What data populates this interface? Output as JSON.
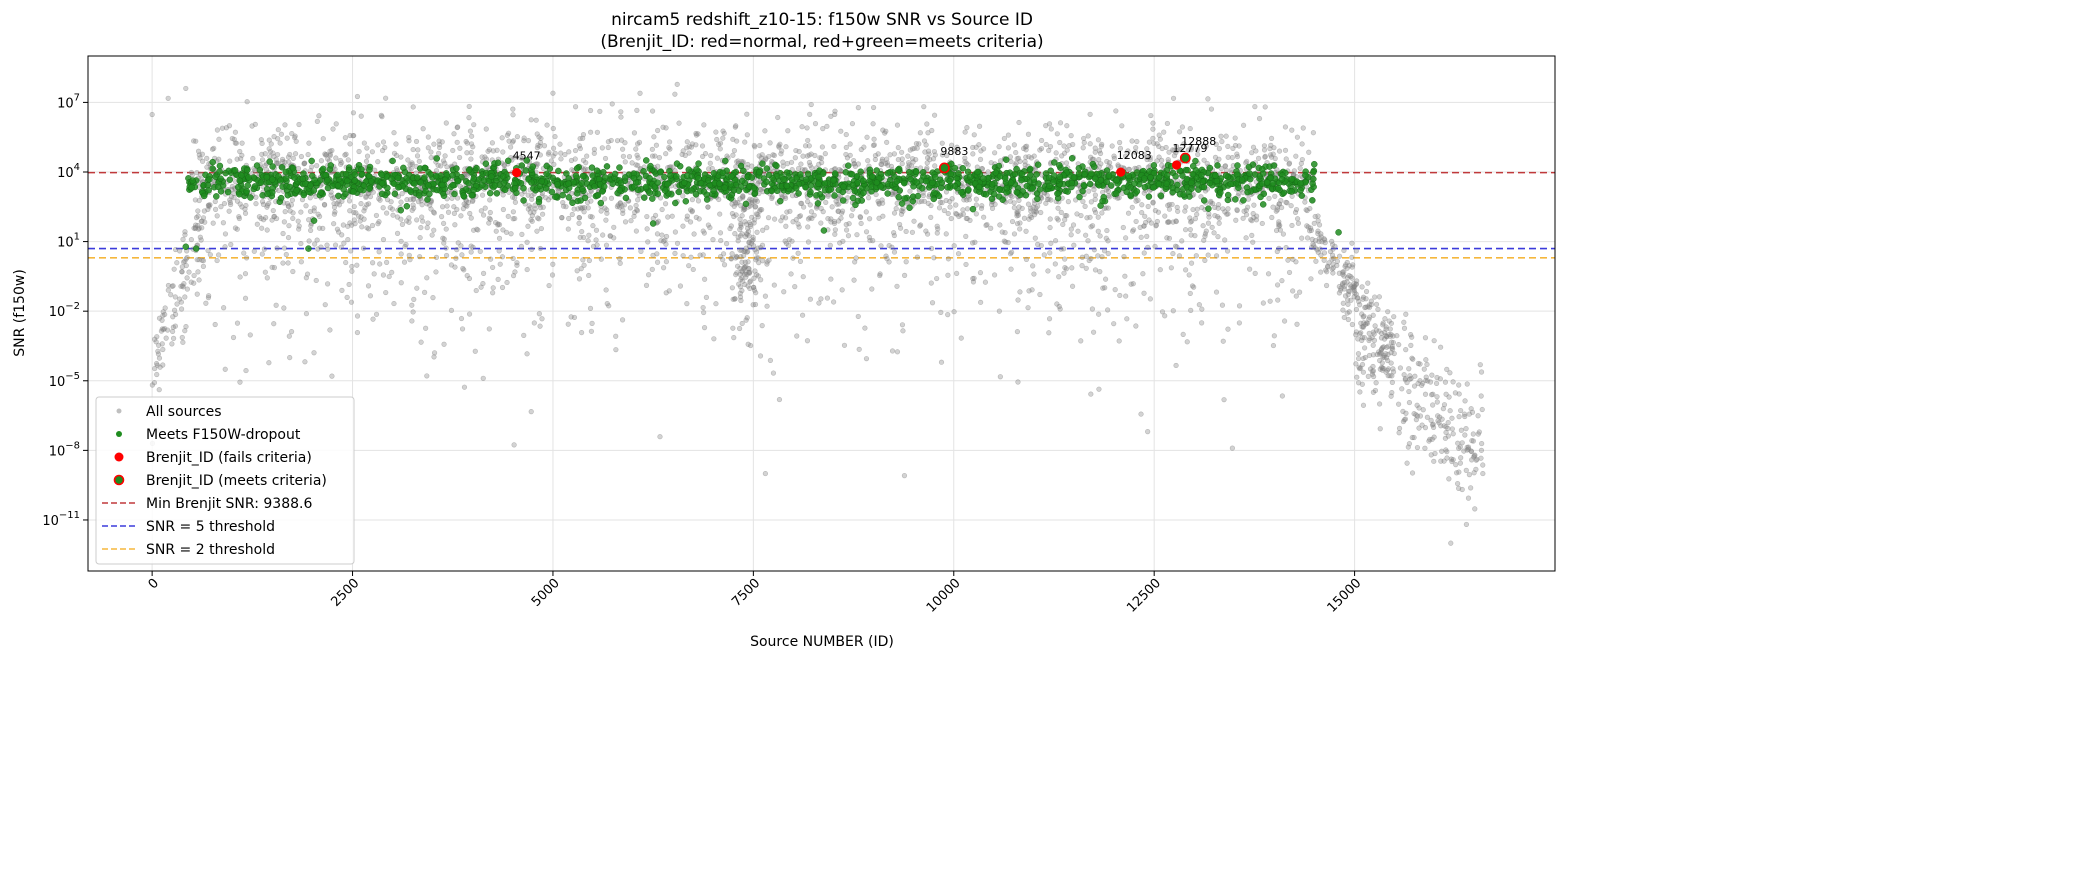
{
  "chart_data": {
    "type": "scatter",
    "title": "nircam5 redshift_z10-15: f150w SNR vs Source ID",
    "subtitle": "(Brenjit_ID: red=normal, red+green=meets criteria)",
    "xlabel": "Source NUMBER (ID)",
    "ylabel": "SNR (f150w)",
    "xlim": [
      -800,
      17500
    ],
    "ylim_log10": [
      -13.2,
      9.0
    ],
    "y_scale": "log",
    "x_ticks": [
      0,
      2500,
      5000,
      7500,
      10000,
      12500,
      15000
    ],
    "x_tick_labels": [
      "0",
      "2500",
      "5000",
      "7500",
      "10000",
      "12500",
      "15000"
    ],
    "y_tick_exponents": [
      7,
      4,
      1,
      -2,
      -5,
      -8,
      -11
    ],
    "y_tick_base": "10",
    "y_tick_labels": [
      "10^7",
      "10^4",
      "10^1",
      "10^-2",
      "10^-5",
      "10^-8",
      "10^-11"
    ],
    "grid": true,
    "legend_position": "lower-left",
    "hlines": [
      {
        "name": "Min Brenjit SNR: 9388.6",
        "y": 9388.6,
        "color": "#c0393b",
        "dash": "dashed"
      },
      {
        "name": "SNR = 5 threshold",
        "y": 5,
        "color": "#3b3bdb",
        "dash": "dashed"
      },
      {
        "name": "SNR = 2 threshold",
        "y": 2,
        "color": "#f5b73d",
        "dash": "dashed"
      }
    ],
    "series": [
      {
        "name": "All sources",
        "color": "#808080",
        "marker": "circle-small-translucent",
        "description_bands": [
          {
            "x_range": [
              0,
              200
            ],
            "log10_y_center": -3.5,
            "spread": 2.5
          },
          {
            "x_range": [
              200,
              700
            ],
            "log10_y_center": -1.5,
            "spread": 2.0
          },
          {
            "x_range": [
              500,
              14500
            ],
            "log10_y_center": 3.6,
            "spread": 1.0
          },
          {
            "x_range": [
              14400,
              15500
            ],
            "log10_y_center": -1.5,
            "spread": 1.5
          },
          {
            "x_range": [
              15000,
              16600
            ],
            "log10_y_center": -6.5,
            "spread": 2.5
          }
        ],
        "notable_points": [
          {
            "x": 0,
            "y": 3000000
          },
          {
            "x": 200,
            "y": 15000000
          },
          {
            "x": 420,
            "y": 40000000
          },
          {
            "x": 5000,
            "y": 25000000
          },
          {
            "x": 6550,
            "y": 60000000
          },
          {
            "x": 9000,
            "y": 6000000
          },
          {
            "x": 7650,
            "y": 1e-09
          },
          {
            "x": 16200,
            "y": 1e-12
          },
          {
            "x": 16600,
            "y": 1e-09
          }
        ]
      },
      {
        "name": "Meets F150W-dropout",
        "color": "#1f8c1f",
        "marker": "circle",
        "description_bands": [
          {
            "x_range": [
              450,
              14500
            ],
            "log10_y_center": 3.55,
            "spread": 0.35
          }
        ],
        "notable_points": [
          {
            "x": 420,
            "y": 6
          },
          {
            "x": 550,
            "y": 5
          },
          {
            "x": 1950,
            "y": 5
          },
          {
            "x": 2020,
            "y": 80
          },
          {
            "x": 6250,
            "y": 60
          },
          {
            "x": 8380,
            "y": 30
          },
          {
            "x": 13860,
            "y": 400
          },
          {
            "x": 14800,
            "y": 25
          },
          {
            "x": 3000,
            "y": 30000
          },
          {
            "x": 1990,
            "y": 30000
          },
          {
            "x": 7150,
            "y": 30000
          }
        ]
      },
      {
        "name": "Brenjit_ID (fails criteria)",
        "color": "#ff0000",
        "marker": "circle-large",
        "points": [
          {
            "x": 4547,
            "y": 9388.6,
            "label": "4547"
          },
          {
            "x": 12083,
            "y": 9900,
            "label": "12083"
          },
          {
            "x": 12779,
            "y": 20000,
            "label": "12779"
          }
        ]
      },
      {
        "name": "Brenjit_ID (meets criteria)",
        "color": "#1f8c1f",
        "edgecolor": "#ff0000",
        "marker": "circle-large-outlined",
        "points": [
          {
            "x": 9883,
            "y": 15000,
            "label": "9883"
          },
          {
            "x": 12888,
            "y": 40000,
            "label": "12888"
          }
        ]
      }
    ],
    "legend": [
      {
        "label": "All sources",
        "kind": "gray-dot"
      },
      {
        "label": "Meets F150W-dropout",
        "kind": "green-dot"
      },
      {
        "label": "Brenjit_ID (fails criteria)",
        "kind": "red-dot"
      },
      {
        "label": "Brenjit_ID (meets criteria)",
        "kind": "red-green-dot"
      },
      {
        "label": "Min Brenjit SNR: 9388.6",
        "kind": "red-dash"
      },
      {
        "label": "SNR = 5 threshold",
        "kind": "blue-dash"
      },
      {
        "label": "SNR = 2 threshold",
        "kind": "orange-dash"
      }
    ]
  }
}
